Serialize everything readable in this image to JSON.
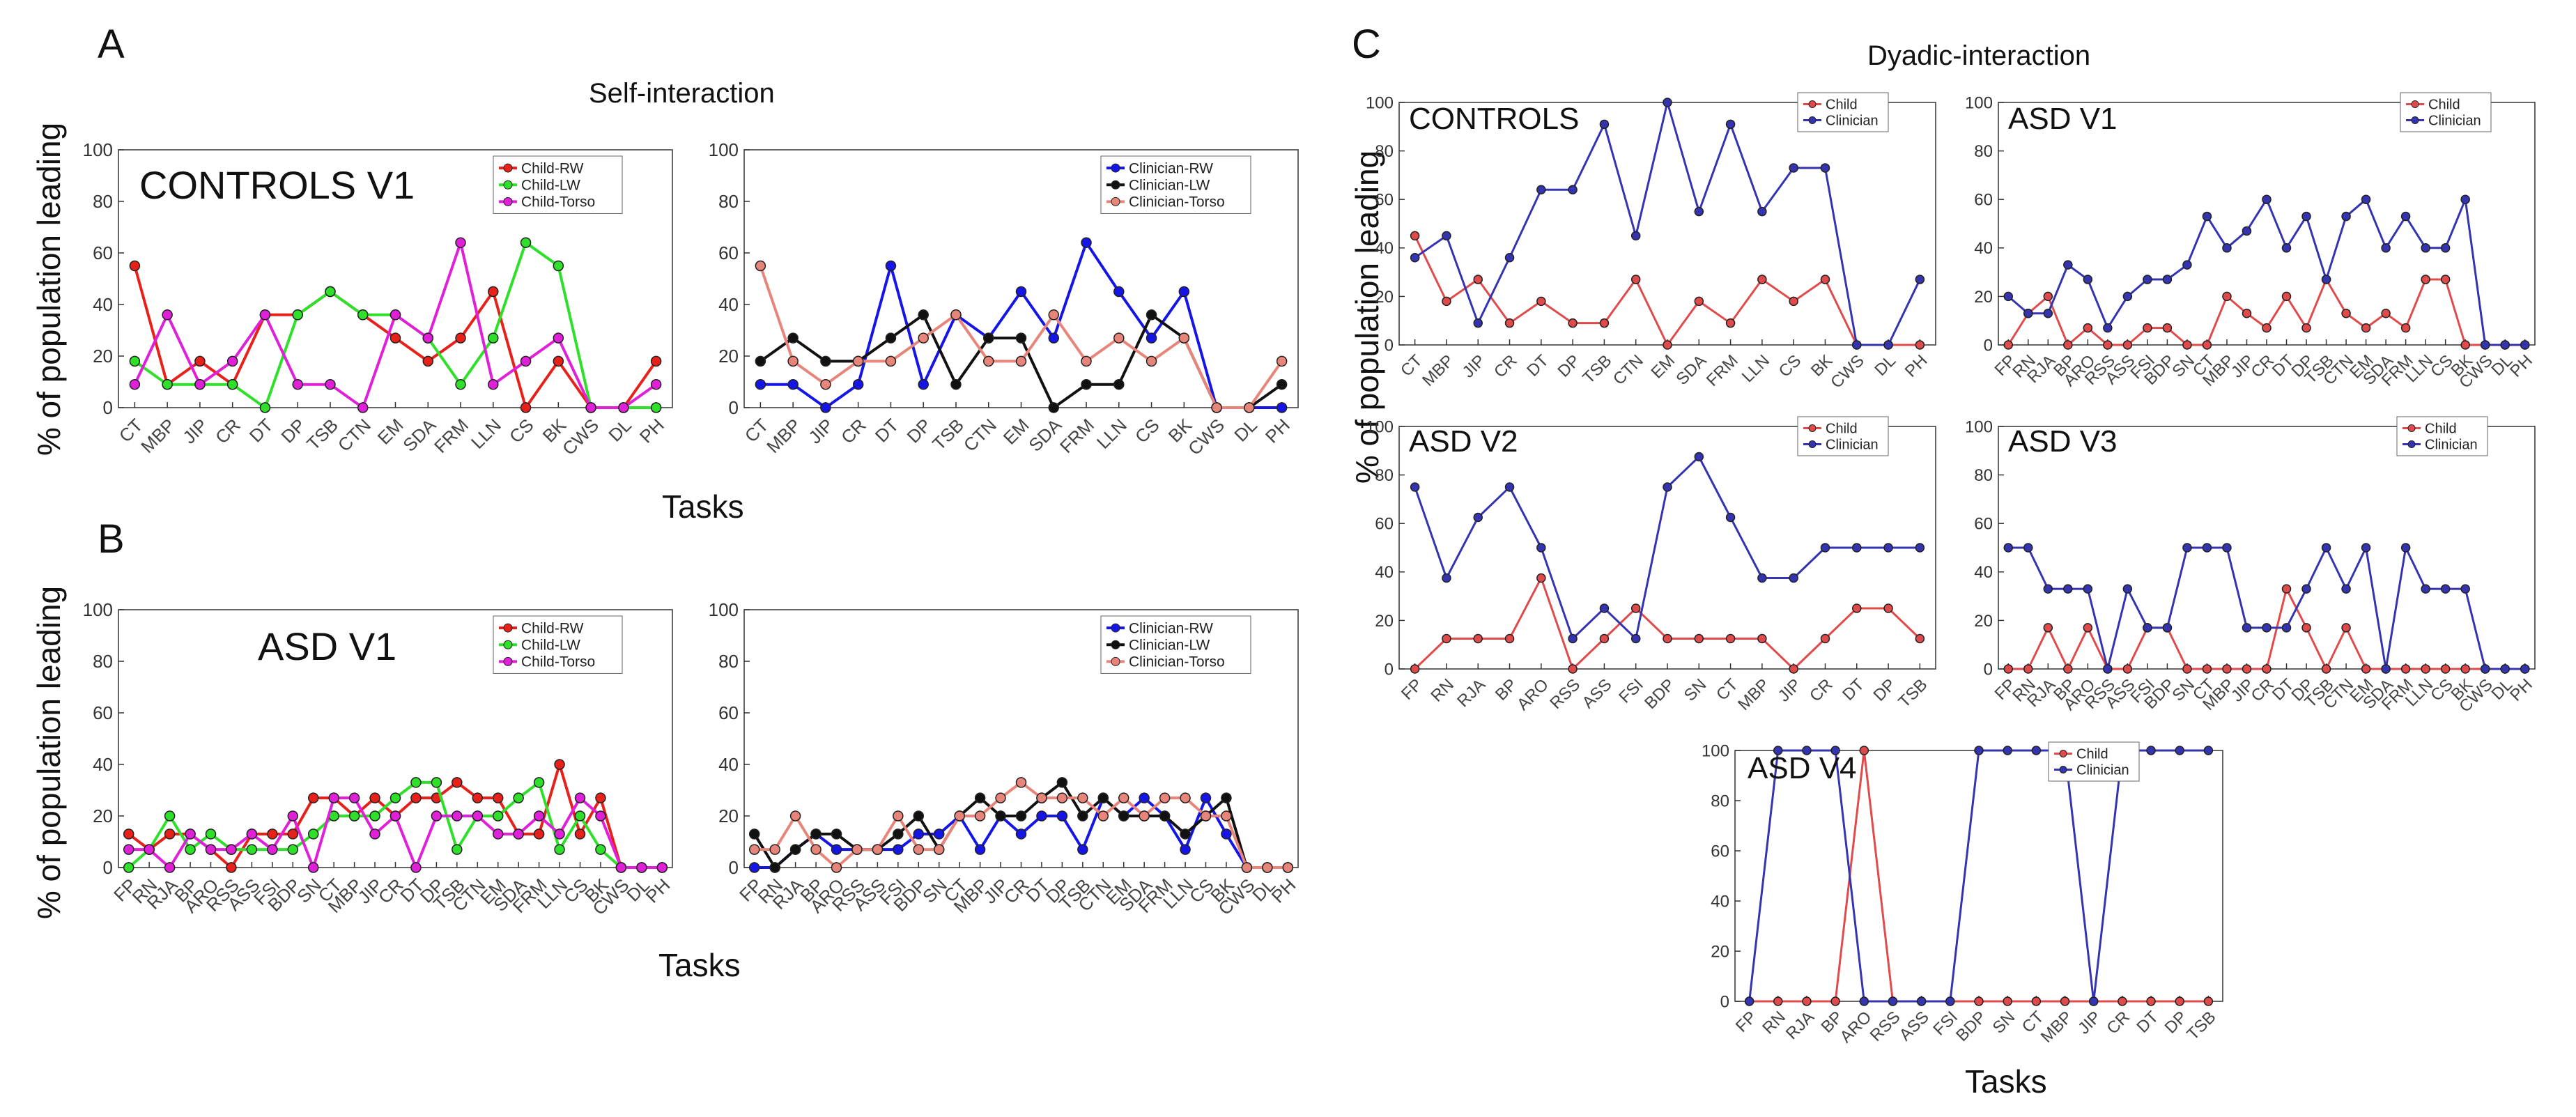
{
  "figure": {
    "panel_letters": [
      "A",
      "B",
      "C"
    ],
    "self_title": "Self-interaction",
    "dyadic_title": "Dyadic-interaction",
    "ylabel": "% of population leading",
    "xlabel": "Tasks"
  },
  "colors": {
    "red": "#e8201a",
    "green": "#2ee02a",
    "magenta": "#e020d8",
    "blue": "#1515e8",
    "black": "#111111",
    "salmon": "#e8857a",
    "dyad_red": "#e04a4a",
    "dyad_blue": "#3434b0"
  },
  "chart_data": [
    {
      "id": "A-child",
      "type": "line",
      "title": "CONTROLS V1",
      "categories": [
        "CT",
        "MBP",
        "JIP",
        "CR",
        "DT",
        "DP",
        "TSB",
        "CTN",
        "EM",
        "SDA",
        "FRM",
        "LLN",
        "CS",
        "BK",
        "CWS",
        "DL",
        "PH"
      ],
      "ylim": [
        0,
        100
      ],
      "yticks": [
        0,
        20,
        40,
        60,
        80,
        100
      ],
      "series": [
        {
          "name": "Child-RW",
          "color": "red",
          "values": [
            55,
            9,
            18,
            9,
            36,
            36,
            45,
            36,
            27,
            18,
            27,
            45,
            0,
            18,
            0,
            0,
            18
          ]
        },
        {
          "name": "Child-LW",
          "color": "green",
          "values": [
            18,
            9,
            9,
            9,
            0,
            36,
            45,
            36,
            36,
            27,
            9,
            27,
            64,
            55,
            0,
            0,
            0
          ]
        },
        {
          "name": "Child-Torso",
          "color": "magenta",
          "values": [
            9,
            36,
            9,
            18,
            36,
            9,
            9,
            0,
            36,
            27,
            64,
            9,
            18,
            27,
            0,
            0,
            9
          ]
        }
      ]
    },
    {
      "id": "A-clinician",
      "type": "line",
      "title": "",
      "categories": [
        "CT",
        "MBP",
        "JIP",
        "CR",
        "DT",
        "DP",
        "TSB",
        "CTN",
        "EM",
        "SDA",
        "FRM",
        "LLN",
        "CS",
        "BK",
        "CWS",
        "DL",
        "PH"
      ],
      "ylim": [
        0,
        100
      ],
      "yticks": [
        0,
        20,
        40,
        60,
        80,
        100
      ],
      "series": [
        {
          "name": "Clinician-RW",
          "color": "blue",
          "values": [
            9,
            9,
            0,
            9,
            55,
            9,
            36,
            27,
            45,
            27,
            64,
            45,
            27,
            45,
            0,
            0,
            0
          ]
        },
        {
          "name": "Clinician-LW",
          "color": "black",
          "values": [
            18,
            27,
            18,
            18,
            27,
            36,
            9,
            27,
            27,
            0,
            9,
            9,
            36,
            27,
            0,
            0,
            9
          ]
        },
        {
          "name": "Clinician-Torso",
          "color": "salmon",
          "values": [
            55,
            18,
            9,
            18,
            18,
            27,
            36,
            18,
            18,
            36,
            18,
            27,
            18,
            27,
            0,
            0,
            18
          ]
        }
      ]
    },
    {
      "id": "B-child",
      "type": "line",
      "title": "ASD V1",
      "categories": [
        "FP",
        "RN",
        "RJA",
        "BP",
        "ARO",
        "RSS",
        "ASS",
        "FSI",
        "BDP",
        "SN",
        "CT",
        "MBP",
        "JIP",
        "CR",
        "DT",
        "DP",
        "TSB",
        "CTN",
        "EM",
        "SDA",
        "FRM",
        "LLN",
        "CS",
        "BK",
        "CWS",
        "DL",
        "PH"
      ],
      "ylim": [
        0,
        100
      ],
      "yticks": [
        0,
        20,
        40,
        60,
        80,
        100
      ],
      "series": [
        {
          "name": "Child-RW",
          "color": "red",
          "values": [
            13,
            7,
            13,
            13,
            7,
            0,
            13,
            13,
            13,
            27,
            27,
            20,
            27,
            20,
            27,
            27,
            33,
            27,
            27,
            13,
            13,
            40,
            13,
            27,
            0,
            0,
            0
          ]
        },
        {
          "name": "Child-LW",
          "color": "green",
          "values": [
            0,
            7,
            20,
            7,
            13,
            7,
            7,
            7,
            7,
            13,
            20,
            20,
            20,
            27,
            33,
            33,
            7,
            20,
            20,
            27,
            33,
            7,
            20,
            7,
            0,
            0,
            0
          ]
        },
        {
          "name": "Child-Torso",
          "color": "magenta",
          "values": [
            7,
            7,
            0,
            13,
            7,
            7,
            13,
            7,
            20,
            0,
            27,
            27,
            13,
            20,
            0,
            20,
            20,
            20,
            13,
            13,
            20,
            13,
            27,
            20,
            0,
            0,
            0
          ]
        }
      ]
    },
    {
      "id": "B-clinician",
      "type": "line",
      "title": "",
      "categories": [
        "FP",
        "RN",
        "RJA",
        "BP",
        "ARO",
        "RSS",
        "ASS",
        "FSI",
        "BDP",
        "SN",
        "CT",
        "MBP",
        "JIP",
        "CR",
        "DT",
        "DP",
        "TSB",
        "CTN",
        "EM",
        "SDA",
        "FRM",
        "LLN",
        "CS",
        "BK",
        "CWS",
        "DL",
        "PH"
      ],
      "ylim": [
        0,
        100
      ],
      "yticks": [
        0,
        20,
        40,
        60,
        80,
        100
      ],
      "series": [
        {
          "name": "Clinician-RW",
          "color": "blue",
          "values": [
            0,
            0,
            7,
            13,
            7,
            7,
            7,
            7,
            13,
            13,
            20,
            7,
            20,
            13,
            20,
            20,
            7,
            27,
            20,
            27,
            20,
            7,
            27,
            13,
            0,
            0,
            0
          ]
        },
        {
          "name": "Clinician-LW",
          "color": "black",
          "values": [
            13,
            0,
            7,
            13,
            13,
            7,
            7,
            13,
            20,
            7,
            20,
            27,
            20,
            20,
            27,
            33,
            20,
            27,
            20,
            20,
            20,
            13,
            20,
            27,
            0,
            0,
            0
          ]
        },
        {
          "name": "Clinician-Torso",
          "color": "salmon",
          "values": [
            7,
            7,
            20,
            7,
            0,
            7,
            7,
            20,
            7,
            7,
            20,
            20,
            27,
            33,
            27,
            27,
            27,
            20,
            27,
            20,
            27,
            27,
            20,
            20,
            0,
            0,
            0
          ]
        }
      ]
    },
    {
      "id": "C-controls",
      "type": "line",
      "title": "CONTROLS",
      "categories": [
        "CT",
        "MBP",
        "JIP",
        "CR",
        "DT",
        "DP",
        "TSB",
        "CTN",
        "EM",
        "SDA",
        "FRM",
        "LLN",
        "CS",
        "BK",
        "CWS",
        "DL",
        "PH"
      ],
      "ylim": [
        0,
        100
      ],
      "yticks": [
        0,
        20,
        40,
        60,
        80,
        100
      ],
      "series": [
        {
          "name": "Child",
          "color": "dyad_red",
          "values": [
            45,
            18,
            27,
            9,
            18,
            9,
            9,
            27,
            0,
            18,
            9,
            27,
            18,
            27,
            0,
            0,
            0
          ]
        },
        {
          "name": "Clinician",
          "color": "dyad_blue",
          "values": [
            36,
            45,
            9,
            36,
            64,
            64,
            91,
            45,
            100,
            55,
            91,
            55,
            73,
            73,
            0,
            0,
            27
          ]
        }
      ]
    },
    {
      "id": "C-asd-v1",
      "type": "line",
      "title": "ASD V1",
      "categories": [
        "FP",
        "RN",
        "RJA",
        "BP",
        "ARO",
        "RSS",
        "ASS",
        "FSI",
        "BDP",
        "SN",
        "CT",
        "MBP",
        "JIP",
        "CR",
        "DT",
        "DP",
        "TSB",
        "CTN",
        "EM",
        "SDA",
        "FRM",
        "LLN",
        "CS",
        "BK",
        "CWS",
        "DL",
        "PH"
      ],
      "ylim": [
        0,
        100
      ],
      "yticks": [
        0,
        20,
        40,
        60,
        80,
        100
      ],
      "series": [
        {
          "name": "Child",
          "color": "dyad_red",
          "values": [
            0,
            13,
            20,
            0,
            7,
            0,
            0,
            7,
            7,
            0,
            0,
            20,
            13,
            7,
            20,
            7,
            27,
            13,
            7,
            13,
            7,
            27,
            27,
            0,
            0,
            0,
            0
          ]
        },
        {
          "name": "Clinician",
          "color": "dyad_blue",
          "values": [
            20,
            13,
            13,
            33,
            27,
            7,
            20,
            27,
            27,
            33,
            53,
            40,
            47,
            60,
            40,
            53,
            27,
            53,
            60,
            40,
            53,
            40,
            40,
            60,
            0,
            0,
            0
          ]
        }
      ]
    },
    {
      "id": "C-asd-v2",
      "type": "line",
      "title": "ASD V2",
      "categories": [
        "FP",
        "RN",
        "RJA",
        "BP",
        "ARO",
        "RSS",
        "ASS",
        "FSI",
        "BDP",
        "SN",
        "CT",
        "MBP",
        "JIP",
        "CR",
        "DT",
        "DP",
        "TSB"
      ],
      "ylim": [
        0,
        100
      ],
      "yticks": [
        0,
        20,
        40,
        60,
        80,
        100
      ],
      "series": [
        {
          "name": "Child",
          "color": "dyad_red",
          "values": [
            0,
            12.5,
            12.5,
            12.5,
            37.5,
            0,
            12.5,
            25,
            12.5,
            12.5,
            12.5,
            12.5,
            0,
            12.5,
            25,
            25,
            12.5
          ]
        },
        {
          "name": "Clinician",
          "color": "dyad_blue",
          "values": [
            75,
            37.5,
            62.5,
            75,
            50,
            12.5,
            25,
            12.5,
            75,
            87.5,
            62.5,
            37.5,
            37.5,
            50,
            50,
            50,
            50
          ]
        }
      ]
    },
    {
      "id": "C-asd-v3",
      "type": "line",
      "title": "ASD V3",
      "categories": [
        "FP",
        "RN",
        "RJA",
        "BP",
        "ARO",
        "RSS",
        "ASS",
        "FSI",
        "BDP",
        "SN",
        "CT",
        "MBP",
        "JIP",
        "CR",
        "DT",
        "DP",
        "TSB",
        "CTN",
        "EM",
        "SDA",
        "FRM",
        "LLN",
        "CS",
        "BK",
        "CWS",
        "DL",
        "PH"
      ],
      "ylim": [
        0,
        100
      ],
      "yticks": [
        0,
        20,
        40,
        60,
        80,
        100
      ],
      "series": [
        {
          "name": "Child",
          "color": "dyad_red",
          "values": [
            0,
            0,
            17,
            0,
            17,
            0,
            0,
            17,
            17,
            0,
            0,
            0,
            0,
            0,
            33,
            17,
            0,
            17,
            0,
            0,
            0,
            0,
            0,
            0,
            0,
            0,
            0
          ]
        },
        {
          "name": "Clinician",
          "color": "dyad_blue",
          "values": [
            50,
            50,
            33,
            33,
            33,
            0,
            33,
            17,
            17,
            50,
            50,
            50,
            17,
            17,
            17,
            33,
            50,
            33,
            50,
            0,
            50,
            33,
            33,
            33,
            0,
            0,
            0
          ]
        }
      ]
    },
    {
      "id": "C-asd-v4",
      "type": "line",
      "title": "ASD V4",
      "categories": [
        "FP",
        "RN",
        "RJA",
        "BP",
        "ARO",
        "RSS",
        "ASS",
        "FSI",
        "BDP",
        "SN",
        "CT",
        "MBP",
        "JIP",
        "CR",
        "DT",
        "DP",
        "TSB"
      ],
      "ylim": [
        0,
        100
      ],
      "yticks": [
        0,
        20,
        40,
        60,
        80,
        100
      ],
      "series": [
        {
          "name": "Child",
          "color": "dyad_red",
          "values": [
            0,
            0,
            0,
            0,
            100,
            0,
            0,
            0,
            0,
            0,
            0,
            0,
            0,
            0,
            0,
            0,
            0
          ]
        },
        {
          "name": "Clinician",
          "color": "dyad_blue",
          "values": [
            0,
            100,
            100,
            100,
            0,
            0,
            0,
            0,
            100,
            100,
            100,
            100,
            0,
            100,
            100,
            100,
            100
          ]
        }
      ]
    }
  ]
}
